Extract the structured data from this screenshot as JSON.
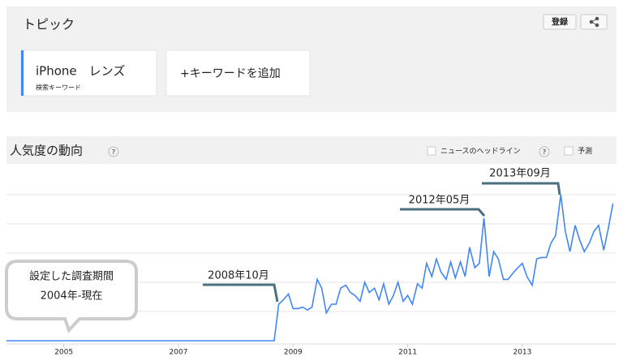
{
  "header": {
    "title": "トピック",
    "subscribe_button": "登録"
  },
  "search_terms": [
    {
      "term": "iPhone　レンズ",
      "kind": "検索キーワード"
    }
  ],
  "add_term": "+キーワードを追加",
  "chart_data": {
    "type": "line",
    "title": "人気度の動向",
    "help": "?",
    "options": [
      {
        "label": "ニュースのヘッドライン",
        "help": "?"
      },
      {
        "label": "予測"
      }
    ],
    "x": [
      2004.0,
      2008.67,
      2008.75,
      2008.83,
      2008.92,
      2009.0,
      2009.08,
      2009.17,
      2009.25,
      2009.33,
      2009.42,
      2009.5,
      2009.58,
      2009.67,
      2009.75,
      2009.83,
      2009.92,
      2010.0,
      2010.08,
      2010.17,
      2010.25,
      2010.33,
      2010.42,
      2010.5,
      2010.58,
      2010.67,
      2010.75,
      2010.83,
      2010.92,
      2011.0,
      2011.08,
      2011.17,
      2011.25,
      2011.33,
      2011.42,
      2011.5,
      2011.58,
      2011.67,
      2011.75,
      2011.83,
      2011.92,
      2012.0,
      2012.08,
      2012.17,
      2012.25,
      2012.33,
      2012.42,
      2012.5,
      2012.58,
      2012.67,
      2012.75,
      2012.83,
      2012.92,
      2013.0,
      2013.08,
      2013.17,
      2013.25,
      2013.33,
      2013.42,
      2013.5,
      2013.58,
      2013.67,
      2013.75,
      2013.83,
      2013.92,
      2014.0,
      2014.08,
      2014.17,
      2014.25,
      2014.33,
      2014.42,
      2014.5,
      2014.58
    ],
    "series": [
      {
        "name": "iPhone　レンズ",
        "color": "#4285f4",
        "values": [
          0,
          0,
          25,
          28,
          32,
          22,
          22,
          23,
          21,
          23,
          42,
          36,
          19,
          25,
          25,
          36,
          38,
          33,
          31,
          27,
          40,
          33,
          36,
          28,
          39,
          25,
          31,
          40,
          27,
          31,
          25,
          39,
          36,
          53,
          44,
          56,
          47,
          42,
          54,
          43,
          54,
          44,
          64,
          50,
          53,
          84,
          44,
          61,
          56,
          42,
          42,
          46,
          50,
          53,
          44,
          38,
          56,
          57,
          57,
          67,
          72,
          100,
          75,
          61,
          79,
          69,
          61,
          67,
          75,
          79,
          62,
          77,
          94
        ]
      }
    ],
    "xlim": [
      2004.0,
      2014.6
    ],
    "xticks": [
      2005,
      2007,
      2009,
      2011,
      2013
    ],
    "ylim": [
      0,
      100
    ],
    "grid_lines": [
      20,
      40,
      60,
      80,
      100
    ],
    "grid": true,
    "annotations": [
      "2008年10月",
      "2012年05月",
      "2013年09月"
    ],
    "callout": [
      "設定した調査期間",
      "2004年-現在"
    ]
  }
}
